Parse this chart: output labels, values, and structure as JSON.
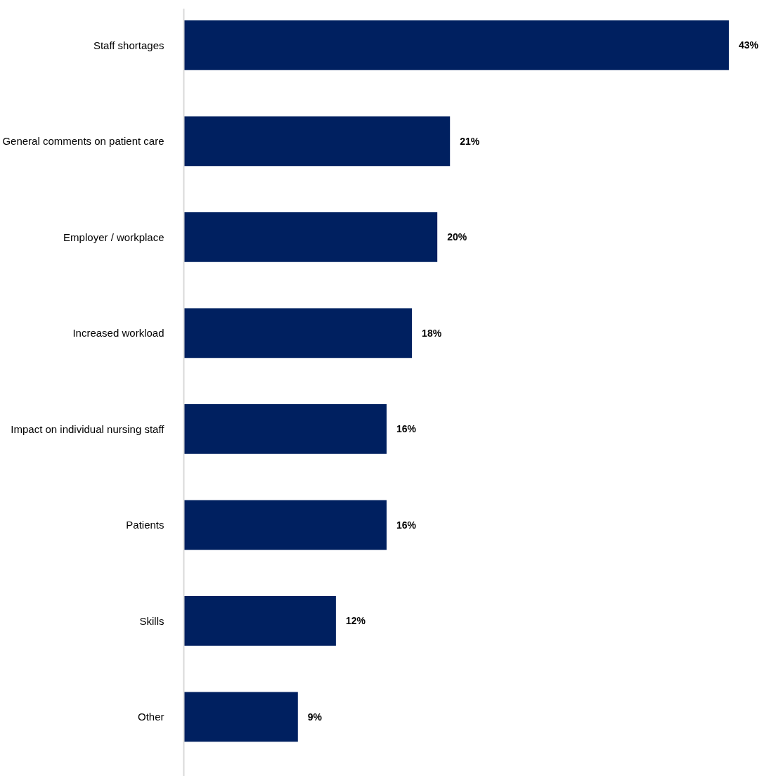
{
  "chart_data": {
    "type": "bar",
    "orientation": "horizontal",
    "categories": [
      "Staff shortages",
      "General comments on patient care",
      "Employer / workplace",
      "Increased workload",
      "Impact on individual nursing staff",
      "Patients",
      "Skills",
      "Other"
    ],
    "values": [
      43,
      21,
      20,
      18,
      16,
      16,
      12,
      9
    ],
    "value_labels": [
      "43%",
      "21%",
      "20%",
      "18%",
      "16%",
      "16%",
      "12%",
      "9%"
    ],
    "color": "#002060",
    "grid": false
  }
}
